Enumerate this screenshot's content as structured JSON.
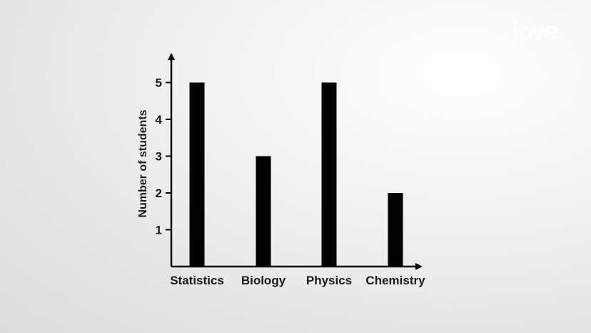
{
  "brand": {
    "logo_text": "jove",
    "logo_color": "#ffffff"
  },
  "chart_data": {
    "type": "bar",
    "categories": [
      "Statistics",
      "Biology",
      "Physics",
      "Chemistry"
    ],
    "values": [
      5,
      3,
      5,
      2
    ],
    "title": "",
    "xlabel": "",
    "ylabel": "Number of students",
    "ylim": [
      0,
      5
    ],
    "yticks": [
      1,
      2,
      3,
      4,
      5
    ],
    "grid": false,
    "bar_color": "#000000",
    "axis_color": "#000000"
  }
}
